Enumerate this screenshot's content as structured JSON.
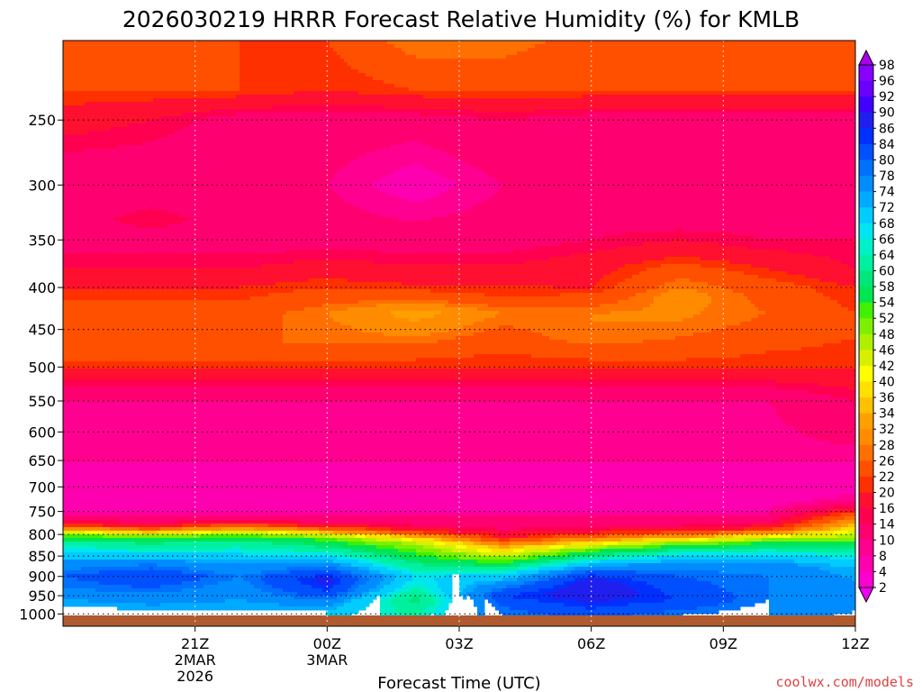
{
  "chart_data": {
    "type": "heatmap",
    "title": "2026030219 HRRR Forecast Relative Humidity (%) for KMLB",
    "xlabel": "Forecast Time (UTC)",
    "ylabel": "",
    "credit": "coolwx.com/models",
    "credit_color": "#e04040",
    "x_range_hours": [
      -1.0,
      17.0
    ],
    "x_ticks": [
      {
        "hour": 2,
        "label": "21Z",
        "date": "2MAR",
        "year": "2026"
      },
      {
        "hour": 5,
        "label": "00Z",
        "date": "3MAR",
        "year": ""
      },
      {
        "hour": 8,
        "label": "03Z",
        "date": "",
        "year": ""
      },
      {
        "hour": 11,
        "label": "06Z",
        "date": "",
        "year": ""
      },
      {
        "hour": 14,
        "label": "09Z",
        "date": "",
        "year": ""
      },
      {
        "hour": 17,
        "label": "12Z",
        "date": "",
        "year": ""
      }
    ],
    "y_axis": {
      "scale": "log",
      "top_hPa": 200,
      "bottom_hPa": 1035,
      "reversed": true
    },
    "y_ticks": [
      250,
      300,
      350,
      400,
      450,
      500,
      550,
      600,
      650,
      700,
      750,
      800,
      850,
      900,
      950,
      1000
    ],
    "grid": true,
    "terrain_color": "#b05a30",
    "colorbar": {
      "labels": [
        98,
        96,
        92,
        90,
        86,
        84,
        80,
        78,
        74,
        72,
        68,
        66,
        64,
        60,
        58,
        54,
        52,
        48,
        46,
        42,
        40,
        36,
        34,
        32,
        28,
        26,
        22,
        20,
        16,
        14,
        10,
        8,
        4,
        2
      ],
      "colors": [
        "#aa00ee",
        "#8800ff",
        "#6a00ff",
        "#4000ff",
        "#2020ee",
        "#0030ff",
        "#0050ff",
        "#0070ff",
        "#008cff",
        "#00aaff",
        "#00ccff",
        "#00e6f0",
        "#00f0c8",
        "#00f0a0",
        "#00e678",
        "#00e650",
        "#40f000",
        "#7cf000",
        "#aef000",
        "#d8f000",
        "#ffff00",
        "#ffe000",
        "#ffc000",
        "#ffa000",
        "#ff8c00",
        "#ff7000",
        "#ff5000",
        "#ff3000",
        "#ff1030",
        "#ff0050",
        "#ff0070",
        "#ff0090",
        "#ff00b0",
        "#ff00d0",
        "#f000f0"
      ]
    },
    "profiles": [
      {
        "hour": -1.0,
        "rh": [
          [
            200,
            24
          ],
          [
            230,
            22
          ],
          [
            250,
            18
          ],
          [
            300,
            10
          ],
          [
            350,
            12
          ],
          [
            380,
            16
          ],
          [
            400,
            20
          ],
          [
            430,
            24
          ],
          [
            470,
            26
          ],
          [
            500,
            20
          ],
          [
            550,
            10
          ],
          [
            650,
            8
          ],
          [
            720,
            6
          ],
          [
            750,
            8
          ],
          [
            770,
            14
          ],
          [
            780,
            22
          ],
          [
            790,
            34
          ],
          [
            800,
            52
          ],
          [
            820,
            62
          ],
          [
            840,
            68
          ],
          [
            870,
            76
          ],
          [
            900,
            80
          ],
          [
            930,
            78
          ],
          [
            960,
            74
          ],
          [
            990,
            70
          ],
          [
            1035,
            68
          ]
        ]
      },
      {
        "hour": 1.0,
        "rh": [
          [
            200,
            26
          ],
          [
            230,
            22
          ],
          [
            250,
            16
          ],
          [
            300,
            10
          ],
          [
            330,
            16
          ],
          [
            350,
            12
          ],
          [
            380,
            16
          ],
          [
            400,
            20
          ],
          [
            430,
            24
          ],
          [
            470,
            26
          ],
          [
            500,
            20
          ],
          [
            550,
            10
          ],
          [
            650,
            8
          ],
          [
            720,
            6
          ],
          [
            750,
            8
          ],
          [
            775,
            14
          ],
          [
            785,
            22
          ],
          [
            795,
            34
          ],
          [
            805,
            52
          ],
          [
            825,
            62
          ],
          [
            845,
            68
          ],
          [
            870,
            78
          ],
          [
            900,
            84
          ],
          [
            930,
            80
          ],
          [
            960,
            76
          ],
          [
            990,
            72
          ],
          [
            1035,
            70
          ]
        ]
      },
      {
        "hour": 3.0,
        "rh": [
          [
            200,
            22
          ],
          [
            230,
            22
          ],
          [
            250,
            12
          ],
          [
            300,
            10
          ],
          [
            350,
            12
          ],
          [
            380,
            16
          ],
          [
            400,
            20
          ],
          [
            430,
            24
          ],
          [
            470,
            26
          ],
          [
            500,
            20
          ],
          [
            550,
            10
          ],
          [
            650,
            8
          ],
          [
            720,
            6
          ],
          [
            750,
            8
          ],
          [
            770,
            14
          ],
          [
            778,
            22
          ],
          [
            788,
            34
          ],
          [
            800,
            52
          ],
          [
            820,
            62
          ],
          [
            845,
            68
          ],
          [
            870,
            74
          ],
          [
            900,
            78
          ],
          [
            930,
            76
          ],
          [
            960,
            74
          ],
          [
            990,
            72
          ],
          [
            1035,
            72
          ]
        ]
      },
      {
        "hour": 5.0,
        "rh": [
          [
            200,
            22
          ],
          [
            230,
            20
          ],
          [
            250,
            12
          ],
          [
            300,
            10
          ],
          [
            350,
            12
          ],
          [
            380,
            18
          ],
          [
            400,
            22
          ],
          [
            430,
            28
          ],
          [
            470,
            26
          ],
          [
            500,
            20
          ],
          [
            550,
            10
          ],
          [
            650,
            8
          ],
          [
            720,
            6
          ],
          [
            750,
            8
          ],
          [
            775,
            14
          ],
          [
            785,
            22
          ],
          [
            795,
            34
          ],
          [
            808,
            52
          ],
          [
            830,
            60
          ],
          [
            850,
            68
          ],
          [
            880,
            80
          ],
          [
            910,
            88
          ],
          [
            940,
            84
          ],
          [
            970,
            76
          ],
          [
            1000,
            70
          ],
          [
            1035,
            68
          ]
        ]
      },
      {
        "hour": 7.0,
        "rh": [
          [
            200,
            28
          ],
          [
            230,
            22
          ],
          [
            250,
            12
          ],
          [
            300,
            6
          ],
          [
            350,
            12
          ],
          [
            390,
            18
          ],
          [
            410,
            24
          ],
          [
            430,
            34
          ],
          [
            460,
            28
          ],
          [
            500,
            20
          ],
          [
            550,
            10
          ],
          [
            650,
            8
          ],
          [
            720,
            6
          ],
          [
            750,
            8
          ],
          [
            780,
            14
          ],
          [
            795,
            22
          ],
          [
            805,
            34
          ],
          [
            822,
            48
          ],
          [
            845,
            54
          ],
          [
            870,
            60
          ],
          [
            900,
            68
          ],
          [
            930,
            64
          ],
          [
            960,
            58
          ],
          [
            990,
            62
          ],
          [
            1035,
            66
          ]
        ]
      },
      {
        "hour": 9.0,
        "rh": [
          [
            200,
            28
          ],
          [
            230,
            22
          ],
          [
            250,
            14
          ],
          [
            300,
            10
          ],
          [
            350,
            12
          ],
          [
            390,
            18
          ],
          [
            410,
            22
          ],
          [
            430,
            28
          ],
          [
            460,
            24
          ],
          [
            500,
            20
          ],
          [
            550,
            10
          ],
          [
            650,
            8
          ],
          [
            720,
            6
          ],
          [
            750,
            8
          ],
          [
            790,
            14
          ],
          [
            810,
            20
          ],
          [
            830,
            34
          ],
          [
            850,
            46
          ],
          [
            870,
            56
          ],
          [
            890,
            66
          ],
          [
            920,
            76
          ],
          [
            950,
            84
          ],
          [
            980,
            80
          ],
          [
            1035,
            76
          ]
        ]
      },
      {
        "hour": 11.0,
        "rh": [
          [
            200,
            24
          ],
          [
            230,
            22
          ],
          [
            250,
            12
          ],
          [
            300,
            10
          ],
          [
            350,
            14
          ],
          [
            375,
            18
          ],
          [
            400,
            20
          ],
          [
            430,
            28
          ],
          [
            460,
            28
          ],
          [
            500,
            20
          ],
          [
            550,
            10
          ],
          [
            650,
            8
          ],
          [
            720,
            6
          ],
          [
            750,
            8
          ],
          [
            785,
            14
          ],
          [
            800,
            22
          ],
          [
            815,
            34
          ],
          [
            835,
            52
          ],
          [
            860,
            66
          ],
          [
            885,
            80
          ],
          [
            910,
            88
          ],
          [
            940,
            90
          ],
          [
            970,
            86
          ],
          [
            1035,
            78
          ]
        ]
      },
      {
        "hour": 13.0,
        "rh": [
          [
            200,
            26
          ],
          [
            230,
            22
          ],
          [
            250,
            12
          ],
          [
            300,
            10
          ],
          [
            340,
            14
          ],
          [
            360,
            18
          ],
          [
            380,
            24
          ],
          [
            410,
            30
          ],
          [
            440,
            28
          ],
          [
            480,
            24
          ],
          [
            500,
            20
          ],
          [
            550,
            10
          ],
          [
            650,
            8
          ],
          [
            720,
            6
          ],
          [
            750,
            8
          ],
          [
            780,
            14
          ],
          [
            795,
            22
          ],
          [
            808,
            34
          ],
          [
            822,
            52
          ],
          [
            845,
            66
          ],
          [
            870,
            76
          ],
          [
            900,
            80
          ],
          [
            930,
            82
          ],
          [
            960,
            84
          ],
          [
            990,
            80
          ],
          [
            1035,
            74
          ]
        ]
      },
      {
        "hour": 15.0,
        "rh": [
          [
            200,
            26
          ],
          [
            230,
            22
          ],
          [
            250,
            12
          ],
          [
            300,
            10
          ],
          [
            350,
            14
          ],
          [
            370,
            18
          ],
          [
            400,
            24
          ],
          [
            430,
            26
          ],
          [
            460,
            24
          ],
          [
            500,
            20
          ],
          [
            550,
            10
          ],
          [
            650,
            8
          ],
          [
            720,
            6
          ],
          [
            750,
            8
          ],
          [
            775,
            14
          ],
          [
            790,
            22
          ],
          [
            800,
            36
          ],
          [
            815,
            52
          ],
          [
            840,
            66
          ],
          [
            870,
            76
          ],
          [
            900,
            78
          ],
          [
            930,
            78
          ],
          [
            960,
            78
          ],
          [
            1035,
            74
          ]
        ]
      },
      {
        "hour": 17.0,
        "rh": [
          [
            200,
            24
          ],
          [
            230,
            22
          ],
          [
            250,
            12
          ],
          [
            300,
            12
          ],
          [
            350,
            14
          ],
          [
            380,
            16
          ],
          [
            400,
            20
          ],
          [
            430,
            22
          ],
          [
            460,
            22
          ],
          [
            500,
            20
          ],
          [
            550,
            14
          ],
          [
            600,
            12
          ],
          [
            650,
            8
          ],
          [
            700,
            6
          ],
          [
            730,
            10
          ],
          [
            745,
            18
          ],
          [
            760,
            26
          ],
          [
            790,
            40
          ],
          [
            820,
            56
          ],
          [
            850,
            66
          ],
          [
            880,
            72
          ],
          [
            910,
            74
          ],
          [
            950,
            76
          ],
          [
            1035,
            72
          ]
        ]
      }
    ]
  }
}
